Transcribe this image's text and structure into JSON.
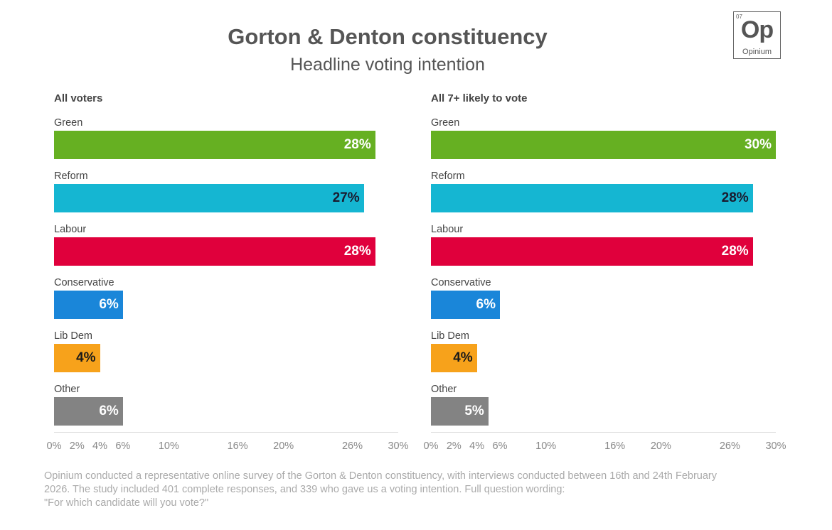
{
  "header": {
    "title": "Gorton & Denton constituency",
    "subtitle": "Headline voting intention"
  },
  "logo": {
    "number": "07",
    "symbol": "Op",
    "name": "Opinium"
  },
  "chart_data": [
    {
      "type": "bar",
      "orientation": "horizontal",
      "title": "All voters",
      "categories": [
        "Green",
        "Reform",
        "Labour",
        "Conservative",
        "Lib Dem",
        "Other"
      ],
      "values": [
        28,
        27,
        28,
        6,
        4,
        6
      ],
      "value_labels": [
        "28%",
        "27%",
        "28%",
        "6%",
        "4%",
        "6%"
      ],
      "colors": [
        "#66b022",
        "#15b6d2",
        "#e0003c",
        "#1a86d9",
        "#f7a21b",
        "#838383"
      ],
      "label_colors": [
        "#ffffff",
        "#1a1a2e",
        "#ffffff",
        "#ffffff",
        "#1a1a1a",
        "#ffffff"
      ],
      "xlim": [
        0,
        30
      ],
      "xticks": [
        0,
        2,
        4,
        6,
        10,
        16,
        20,
        26,
        30
      ],
      "xtick_labels": [
        "0%",
        "2%",
        "4%",
        "6%",
        "10%",
        "16%",
        "20%",
        "26%",
        "30%"
      ],
      "xlabel": "",
      "ylabel": "",
      "grid": false
    },
    {
      "type": "bar",
      "orientation": "horizontal",
      "title": "All 7+ likely to vote",
      "categories": [
        "Green",
        "Reform",
        "Labour",
        "Conservative",
        "Lib Dem",
        "Other"
      ],
      "values": [
        30,
        28,
        28,
        6,
        4,
        5
      ],
      "value_labels": [
        "30%",
        "28%",
        "28%",
        "6%",
        "4%",
        "5%"
      ],
      "colors": [
        "#66b022",
        "#15b6d2",
        "#e0003c",
        "#1a86d9",
        "#f7a21b",
        "#838383"
      ],
      "label_colors": [
        "#ffffff",
        "#1a1a2e",
        "#ffffff",
        "#ffffff",
        "#1a1a1a",
        "#ffffff"
      ],
      "xlim": [
        0,
        30
      ],
      "xticks": [
        0,
        2,
        4,
        6,
        10,
        16,
        20,
        26,
        30
      ],
      "xtick_labels": [
        "0%",
        "2%",
        "4%",
        "6%",
        "10%",
        "16%",
        "20%",
        "26%",
        "30%"
      ],
      "xlabel": "",
      "ylabel": "",
      "grid": false
    }
  ],
  "footnote": {
    "line1": "Opinium conducted a representative online survey of the Gorton & Denton constituency, with interviews conducted between 16th and 24th February",
    "line2": "2026. The study included 401 complete responses, and 339 who gave us a voting intention. Full question wording:",
    "line3": "\"For which candidate will you vote?\""
  }
}
